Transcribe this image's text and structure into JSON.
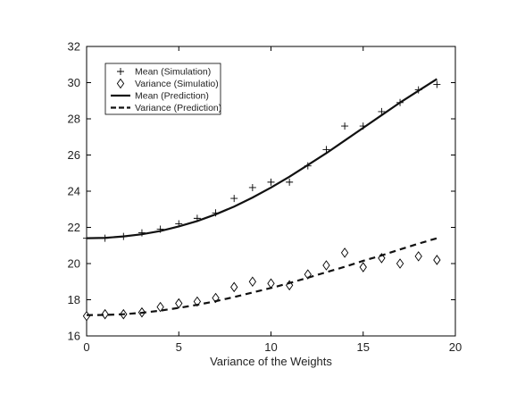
{
  "chart_data": {
    "type": "line",
    "xlabel": "Variance of the Weights",
    "ylabel": "",
    "title": "",
    "xlim": [
      0,
      20
    ],
    "ylim": [
      16,
      32
    ],
    "xticks": [
      0,
      5,
      10,
      15,
      20
    ],
    "yticks": [
      16,
      18,
      20,
      22,
      24,
      26,
      28,
      30,
      32
    ],
    "grid": false,
    "legend_position": "top-left",
    "series": [
      {
        "name": "Mean (Simulation)",
        "style": "plus-marker",
        "x": [
          0,
          1,
          2,
          3,
          4,
          5,
          6,
          7,
          8,
          9,
          10,
          11,
          12,
          13,
          14,
          15,
          16,
          17,
          18,
          19
        ],
        "y": [
          21.4,
          21.4,
          21.5,
          21.7,
          21.9,
          22.2,
          22.5,
          22.8,
          23.6,
          24.2,
          24.5,
          24.5,
          25.4,
          26.3,
          27.6,
          27.6,
          28.4,
          28.9,
          29.6,
          29.9
        ]
      },
      {
        "name": "Variance (Simulatio)",
        "style": "diamond-marker",
        "x": [
          0,
          1,
          2,
          3,
          4,
          5,
          6,
          7,
          8,
          9,
          10,
          11,
          12,
          13,
          14,
          15,
          16,
          17,
          18,
          19
        ],
        "y": [
          17.1,
          17.2,
          17.2,
          17.3,
          17.6,
          17.8,
          17.9,
          18.1,
          18.7,
          19.0,
          18.9,
          18.8,
          19.4,
          19.9,
          20.6,
          19.8,
          20.3,
          20.0,
          20.4,
          20.2
        ]
      },
      {
        "name": "Mean (Prediction)",
        "style": "solid-line",
        "x": [
          0,
          1,
          2,
          3,
          4,
          5,
          6,
          7,
          8,
          9,
          10,
          11,
          12,
          13,
          14,
          15,
          16,
          17,
          18,
          19
        ],
        "y": [
          21.4,
          21.42,
          21.5,
          21.62,
          21.8,
          22.05,
          22.35,
          22.72,
          23.15,
          23.65,
          24.2,
          24.8,
          25.45,
          26.1,
          26.8,
          27.5,
          28.2,
          28.9,
          29.55,
          30.2
        ]
      },
      {
        "name": "Variance (Prediction)",
        "style": "dashed-line",
        "x": [
          0,
          1,
          2,
          3,
          4,
          5,
          6,
          7,
          8,
          9,
          10,
          11,
          12,
          13,
          14,
          15,
          16,
          17,
          18,
          19
        ],
        "y": [
          17.15,
          17.16,
          17.2,
          17.28,
          17.4,
          17.55,
          17.72,
          17.92,
          18.15,
          18.4,
          18.65,
          18.92,
          19.22,
          19.52,
          19.82,
          20.15,
          20.45,
          20.78,
          21.1,
          21.4
        ]
      }
    ]
  }
}
